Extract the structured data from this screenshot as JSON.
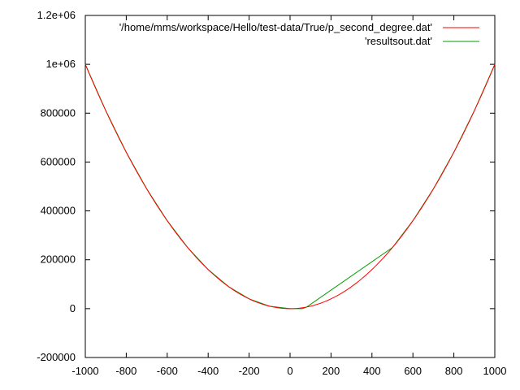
{
  "chart_data": {
    "type": "line",
    "title": "",
    "xlabel": "",
    "ylabel": "",
    "xlim": [
      -1000,
      1000
    ],
    "ylim": [
      -200000,
      1200000
    ],
    "x_ticks": [
      -1000,
      -800,
      -600,
      -400,
      -200,
      0,
      200,
      400,
      600,
      800,
      1000
    ],
    "x_tick_labels": [
      "-1000",
      "-800",
      "-600",
      "-400",
      "-200",
      "0",
      "200",
      "400",
      "600",
      "800",
      "1000"
    ],
    "y_ticks": [
      -200000,
      0,
      200000,
      400000,
      600000,
      800000,
      1000000,
      1200000
    ],
    "y_tick_labels": [
      "-200000",
      "0",
      "200000",
      "400000",
      "600000",
      "800000",
      "1e+06",
      "1.2e+06"
    ],
    "grid": false,
    "legend_position": "top-right",
    "series": [
      {
        "name": "'/home/mms/workspace/Hello/test-data/True/p_second_degree.dat'",
        "color": "#ff0000",
        "x": [
          -1000,
          -900,
          -800,
          -700,
          -600,
          -500,
          -400,
          -300,
          -200,
          -100,
          0,
          100,
          200,
          300,
          400,
          500,
          600,
          700,
          800,
          900,
          1000
        ],
        "y": [
          1000000,
          810000,
          640000,
          490000,
          360000,
          250000,
          160000,
          90000,
          40000,
          10000,
          0,
          10000,
          40000,
          90000,
          160000,
          250000,
          360000,
          490000,
          640000,
          810000,
          1000000
        ]
      },
      {
        "name": "'resultsout.dat'",
        "color": "#00a000",
        "x": [
          -1000,
          -900,
          -800,
          -700,
          -600,
          -500,
          -400,
          -300,
          -200,
          -100,
          0,
          60,
          80,
          500,
          600,
          700,
          800,
          900,
          1000
        ],
        "y": [
          1000000,
          810000,
          640000,
          490000,
          360000,
          250000,
          160000,
          90000,
          40000,
          10000,
          0,
          0,
          6000,
          250000,
          360000,
          490000,
          640000,
          810000,
          1000000
        ]
      }
    ]
  }
}
